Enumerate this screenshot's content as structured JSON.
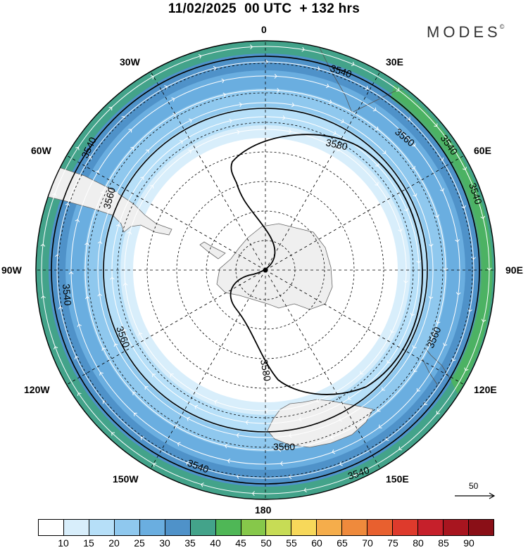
{
  "title": "11/02/2025  00 UTC  + 132 hrs",
  "logo": "MODES",
  "logo_mark": "©",
  "lon_labels": {
    "l0": "0",
    "l30e": "30E",
    "l60e": "60E",
    "l90e": "90E",
    "l120e": "120E",
    "l150e": "150E",
    "l180": "180",
    "l150w": "150W",
    "l120w": "120W",
    "l90w": "90W",
    "l60w": "60W",
    "l30w": "30W"
  },
  "contours": {
    "c1": "3540",
    "c2": "3540",
    "c3": "3540",
    "c4": "3540",
    "c5": "3540",
    "c6": "3560",
    "c7": "3560",
    "c8": "3560",
    "c9": "3560",
    "c10": "3560",
    "c11": "3580",
    "c12": "3580"
  },
  "reference_vector": "50",
  "colorbar": {
    "colors": [
      "#ffffff",
      "#d8eefb",
      "#b6dff8",
      "#8fc8ee",
      "#6aaee0",
      "#4f92c9",
      "#43a38a",
      "#4fb756",
      "#86c84a",
      "#c7dc55",
      "#f7d85a",
      "#f5ad4b",
      "#ef8a3c",
      "#e8602f",
      "#de3a2c",
      "#c6202b",
      "#a8151f",
      "#8a0f17"
    ],
    "labels": [
      "10",
      "15",
      "20",
      "25",
      "30",
      "35",
      "40",
      "45",
      "50",
      "55",
      "60",
      "65",
      "70",
      "75",
      "80",
      "85",
      "90"
    ]
  }
}
